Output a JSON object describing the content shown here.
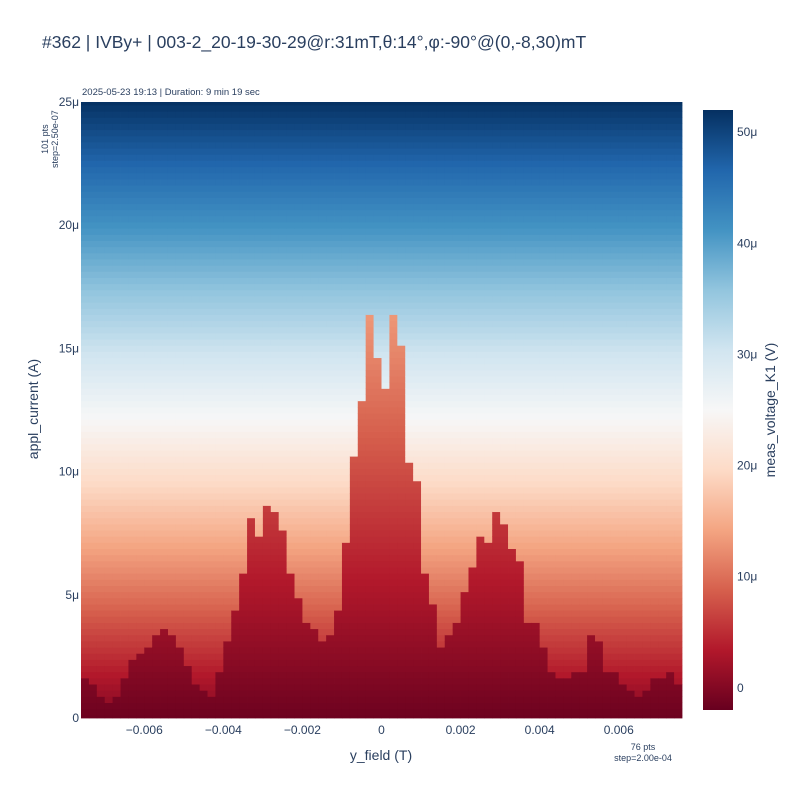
{
  "title": "#362 | IVBy+ | 003-2_20-19-30-29@r:31mT,θ:14°,φ:-90°@(0,-8,30)mT",
  "subtitle": "2025-05-23 19:13 | Duration: 9 min 19 sec",
  "y_points": {
    "line1": "101 pts",
    "line2": "step=2.50e-07"
  },
  "x_points": {
    "line1": "76 pts",
    "line2": "step=2.00e-04"
  },
  "chart_data": {
    "type": "heatmap",
    "title": "#362 | IVBy+ | 003-2_20-19-30-29@r:31mT,θ:14°,φ:-90°@(0,-8,30)mT",
    "xlabel": "y_field (T)",
    "ylabel": "appl_current (A)",
    "colorbar_label": "meas_voltage_K1 (V)",
    "x_range": [
      -0.0076,
      0.0076
    ],
    "y_range": [
      0,
      2.5e-05
    ],
    "x_ticks": [
      {
        "value": -0.006,
        "label": "−0.006"
      },
      {
        "value": -0.004,
        "label": "−0.004"
      },
      {
        "value": -0.002,
        "label": "−0.002"
      },
      {
        "value": 0,
        "label": "0"
      },
      {
        "value": 0.002,
        "label": "0.002"
      },
      {
        "value": 0.004,
        "label": "0.004"
      },
      {
        "value": 0.006,
        "label": "0.006"
      }
    ],
    "y_ticks": [
      {
        "value": 0,
        "label": "0"
      },
      {
        "value": 5e-06,
        "label": "5μ"
      },
      {
        "value": 1e-05,
        "label": "10μ"
      },
      {
        "value": 1.5e-05,
        "label": "15μ"
      },
      {
        "value": 2e-05,
        "label": "20μ"
      },
      {
        "value": 2.5e-05,
        "label": "25μ"
      }
    ],
    "colorbar_range": [
      -2e-06,
      5.2e-05
    ],
    "colorbar_ticks": [
      {
        "value": 0,
        "label": "0"
      },
      {
        "value": 1e-05,
        "label": "10μ"
      },
      {
        "value": 2e-05,
        "label": "20μ"
      },
      {
        "value": 3e-05,
        "label": "30μ"
      },
      {
        "value": 4e-05,
        "label": "40μ"
      },
      {
        "value": 5e-05,
        "label": "50μ"
      }
    ],
    "colorscale": "RdBu",
    "colorscale_stops": [
      "#67001f",
      "#b2182b",
      "#d6604d",
      "#f4a582",
      "#fddbc7",
      "#f7f7f7",
      "#d1e5f0",
      "#92c5de",
      "#4393c3",
      "#2166ac",
      "#053061"
    ],
    "x_start": -0.0075,
    "x_step": 0.0002,
    "y_start": 0,
    "y_step": 2.5e-07,
    "voltage_slope": 2.08,
    "switching_current": [
      1.6,
      1.5,
      1.0,
      0.7,
      0.8,
      1.6,
      2.3,
      2.7,
      3.0,
      3.3,
      3.6,
      3.3,
      2.8,
      2.2,
      1.4,
      1.1,
      0.8,
      1.9,
      3.1,
      4.5,
      5.9,
      8.2,
      7.3,
      8.6,
      8.3,
      7.6,
      5.9,
      4.9,
      4.0,
      3.6,
      3.1,
      3.4,
      4.5,
      7.1,
      10.6,
      12.9,
      16.4,
      14.7,
      13.4,
      16.4,
      15.2,
      10.5,
      9.7,
      5.9,
      4.6,
      2.8,
      3.4,
      3.8,
      5.1,
      6.1,
      7.5,
      7.1,
      8.5,
      7.8,
      7.0,
      6.5,
      4.0,
      3.8,
      3.0,
      1.8,
      1.6,
      1.7,
      2.0,
      1.8,
      3.3,
      3.2,
      1.9,
      1.8,
      1.4,
      1.1,
      1.0,
      1.2,
      1.6,
      1.6,
      1.8,
      1.4
    ]
  }
}
